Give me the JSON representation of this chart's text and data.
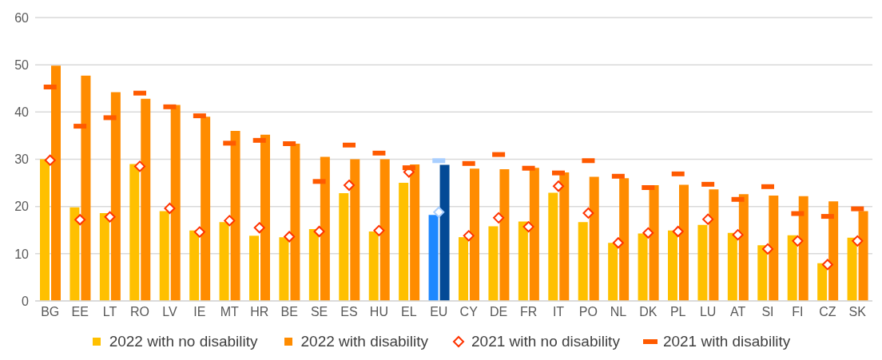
{
  "chart_data": {
    "type": "bar",
    "categories": [
      "BG",
      "EE",
      "LT",
      "RO",
      "LV",
      "IE",
      "MT",
      "HR",
      "BE",
      "SE",
      "ES",
      "HU",
      "EL",
      "EU",
      "CY",
      "DE",
      "FR",
      "IT",
      "PO",
      "NL",
      "DK",
      "PL",
      "LU",
      "AT",
      "SI",
      "FI",
      "CZ",
      "SK"
    ],
    "series": [
      {
        "name": "2022 with no disability",
        "color": "#ffc000",
        "colors": [
          "#ffc000",
          "#ffc000",
          "#ffc000",
          "#ffc000",
          "#ffc000",
          "#ffc000",
          "#ffc000",
          "#ffc000",
          "#ffc000",
          "#ffc000",
          "#ffc000",
          "#ffc000",
          "#ffc000",
          "#1e88ff",
          "#ffc000",
          "#ffc000",
          "#ffc000",
          "#ffc000",
          "#ffc000",
          "#ffc000",
          "#ffc000",
          "#ffc000",
          "#ffc000",
          "#ffc000",
          "#ffc000",
          "#ffc000",
          "#ffc000",
          "#ffc000"
        ],
        "values": [
          30,
          19.8,
          18.6,
          29,
          19,
          14.9,
          16.7,
          13.8,
          13.5,
          15.2,
          22.8,
          14.7,
          25,
          18.2,
          13.5,
          15.8,
          16.8,
          22.9,
          16.7,
          12.3,
          14.3,
          14.9,
          16.1,
          14.4,
          11.8,
          13.9,
          8,
          13.4
        ]
      },
      {
        "name": "2022 with disability",
        "color": "#ff8c00",
        "colors": [
          "#ff8c00",
          "#ff8c00",
          "#ff8c00",
          "#ff8c00",
          "#ff8c00",
          "#ff8c00",
          "#ff8c00",
          "#ff8c00",
          "#ff8c00",
          "#ff8c00",
          "#ff8c00",
          "#ff8c00",
          "#ff8c00",
          "#034a96",
          "#ff8c00",
          "#ff8c00",
          "#ff8c00",
          "#ff8c00",
          "#ff8c00",
          "#ff8c00",
          "#ff8c00",
          "#ff8c00",
          "#ff8c00",
          "#ff8c00",
          "#ff8c00",
          "#ff8c00",
          "#ff8c00",
          "#ff8c00"
        ],
        "values": [
          49.8,
          47.7,
          44.2,
          42.8,
          41.5,
          39,
          36,
          35.2,
          33.3,
          30.5,
          30,
          30,
          28.9,
          28.8,
          28,
          27.9,
          28.2,
          27.2,
          26.3,
          26,
          24.5,
          24.6,
          23.6,
          22.6,
          22.3,
          22.2,
          21.1,
          19
        ]
      },
      {
        "name": "2021 with no disability",
        "type": "scatter",
        "marker": "diamond",
        "color": "#ff3300",
        "colors": [
          "#ff3300",
          "#ff3300",
          "#ff3300",
          "#ff3300",
          "#ff3300",
          "#ff3300",
          "#ff3300",
          "#ff3300",
          "#ff3300",
          "#ff3300",
          "#ff3300",
          "#ff3300",
          "#ff3300",
          "#a9cfff",
          "#ff3300",
          "#ff3300",
          "#ff3300",
          "#ff3300",
          "#ff3300",
          "#ff3300",
          "#ff3300",
          "#ff3300",
          "#ff3300",
          "#ff3300",
          "#ff3300",
          "#ff3300",
          "#ff3300",
          "#ff3300"
        ],
        "values": [
          29.8,
          17.2,
          17.8,
          28.5,
          19.6,
          14.6,
          17,
          15.5,
          13.6,
          14.7,
          24.5,
          14.9,
          27.3,
          18.8,
          13.8,
          17.6,
          15.7,
          24.3,
          18.6,
          12.3,
          14.4,
          14.7,
          17.3,
          14,
          11,
          12.7,
          7.7,
          12.7
        ]
      },
      {
        "name": "2021 with disability",
        "type": "scatter",
        "color": "#ff5a00",
        "colors": [
          "#ff5a00",
          "#ff5a00",
          "#ff5a00",
          "#ff5a00",
          "#ff5a00",
          "#ff5a00",
          "#ff5a00",
          "#ff5a00",
          "#ff5a00",
          "#ff5a00",
          "#ff5a00",
          "#ff5a00",
          "#ff5a00",
          "#a9cfff",
          "#ff5a00",
          "#ff5a00",
          "#ff5a00",
          "#ff5a00",
          "#ff5a00",
          "#ff5a00",
          "#ff5a00",
          "#ff5a00",
          "#ff5a00",
          "#ff5a00",
          "#ff5a00",
          "#ff5a00",
          "#ff5a00",
          "#ff5a00"
        ],
        "values": [
          45.3,
          37,
          38.8,
          44,
          41.1,
          39.2,
          33.4,
          34,
          33.3,
          25.3,
          33,
          31.3,
          28.2,
          29.7,
          29.1,
          31,
          28.1,
          27.1,
          29.7,
          26.4,
          24,
          26.9,
          24.7,
          21.5,
          24.2,
          18.5,
          17.9,
          19.5
        ]
      }
    ],
    "ylim": [
      0,
      60
    ],
    "yticks": [
      0,
      10,
      20,
      30,
      40,
      50,
      60
    ],
    "grid": "y",
    "legend": "bottom"
  }
}
